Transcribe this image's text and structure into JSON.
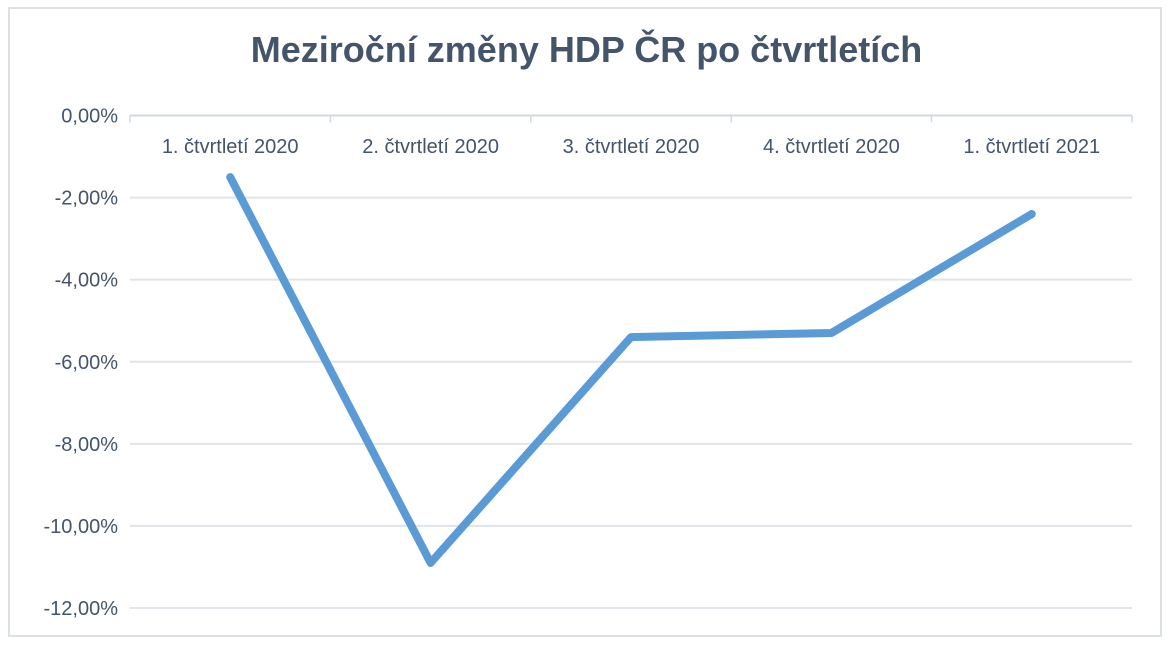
{
  "frame": {
    "border_color": "#dce1e7"
  },
  "chart_data": {
    "type": "line",
    "title": "Meziroční změny HDP ČR po čtvrtletích",
    "title_color": "#44546a",
    "categories": [
      "1. čtvrtletí 2020",
      "2. čtvrtletí 2020",
      "3. čtvrtletí 2020",
      "4. čtvrtletí 2020",
      "1. čtvrtletí 2021"
    ],
    "values": [
      -1.5,
      -10.9,
      -5.4,
      -5.3,
      -2.4
    ],
    "unit": "%",
    "xlabel": "",
    "ylabel": "",
    "ylim": [
      -12,
      0
    ],
    "y_tick_step": 2,
    "y_tick_labels": [
      "0,00%",
      "-2,00%",
      "-4,00%",
      "-6,00%",
      "-8,00%",
      "-10,00%",
      "-12,00%"
    ],
    "grid": "horizontal",
    "legend": "none",
    "line_color": "#5b9bd5",
    "line_width": 8,
    "gridline_color": "#e1e5ea",
    "axis_color": "#d3d9df",
    "label_color": "#44546a"
  }
}
